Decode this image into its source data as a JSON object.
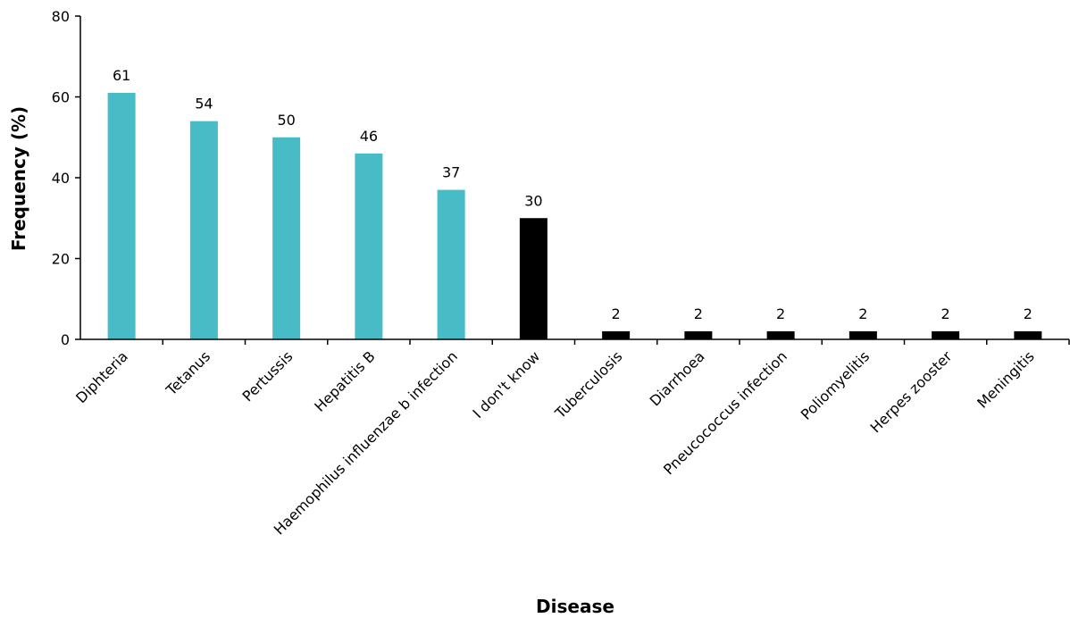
{
  "chart_data": {
    "type": "bar",
    "categories": [
      "Diphteria",
      "Tetanus",
      "Pertussis",
      "Hepatitis B",
      "Haemophilus influenzae b infection",
      "I don't know",
      "Tuberculosis",
      "Diarrhoea",
      "Pneucococcus infection",
      "Poliomyelitis",
      "Herpes zooster",
      "Meningitis"
    ],
    "values": [
      61,
      54,
      50,
      46,
      37,
      30,
      2,
      2,
      2,
      2,
      2,
      2
    ],
    "data_labels": [
      "61",
      "54",
      "50",
      "46",
      "37",
      "30",
      "2",
      "2",
      "2",
      "2",
      "2",
      "2"
    ],
    "bar_colors": [
      "#47bcc6",
      "#47bcc6",
      "#47bcc6",
      "#47bcc6",
      "#47bcc6",
      "#000000",
      "#000000",
      "#000000",
      "#000000",
      "#000000",
      "#000000",
      "#000000"
    ],
    "title": "",
    "xlabel": "Disease",
    "ylabel": "Frequency (%)",
    "ylim": [
      0,
      80
    ],
    "yticks": [
      0,
      20,
      40,
      60,
      80
    ],
    "grid": false,
    "legend": "none"
  }
}
